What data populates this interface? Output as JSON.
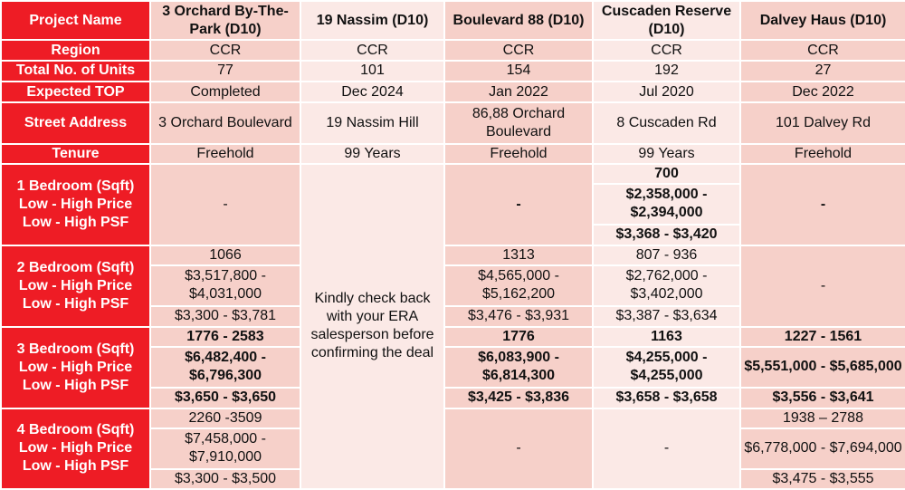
{
  "header": {
    "corner": "Project Name",
    "projects": [
      "3 Orchard By-The-Park (D10)",
      "19 Nassim (D10)",
      "Boulevard 88 (D10)",
      "Cuscaden Reserve (D10)",
      "Dalvey Haus (D10)"
    ]
  },
  "labels": {
    "region": "Region",
    "units": "Total No. of Units",
    "top": "Expected TOP",
    "address": "Street Address",
    "tenure": "Tenure"
  },
  "region": [
    "CCR",
    "CCR",
    "CCR",
    "CCR",
    "CCR"
  ],
  "units": [
    "77",
    "101",
    "154",
    "192",
    "27"
  ],
  "top": [
    "Completed",
    "Dec 2024",
    "Jan 2022",
    "Jul 2020",
    "Dec 2022"
  ],
  "address": [
    "3 Orchard Boulevard",
    "19 Nassim Hill",
    "86,88 Orchard Boulevard",
    "8 Cuscaden Rd",
    "101 Dalvey Rd"
  ],
  "tenure": [
    "Freehold",
    "99 Years",
    "Freehold",
    "99 Years",
    "Freehold"
  ],
  "bedrooms": [
    {
      "labels": [
        "1 Bedroom (Sqft)",
        "Low - High Price",
        "Low - High PSF"
      ],
      "orchard": "-",
      "boulevard": "-",
      "cuscaden": {
        "sqft": "700",
        "price": "$2,358,000 - $2,394,000",
        "psf": "$3,368 - $3,420"
      },
      "dalvey": "-"
    },
    {
      "labels": [
        "2 Bedroom (Sqft)",
        "Low - High Price",
        "Low - High PSF"
      ],
      "orchard": {
        "sqft": "1066",
        "price": "$3,517,800 - $4,031,000",
        "psf": "$3,300 - $3,781"
      },
      "boulevard": {
        "sqft": "1313",
        "price": "$4,565,000 - $5,162,200",
        "psf": "$3,476 - $3,931"
      },
      "cuscaden": {
        "sqft": "807 - 936",
        "price": "$2,762,000 - $3,402,000",
        "psf": "$3,387 - $3,634"
      },
      "dalvey": "-"
    },
    {
      "labels": [
        "3 Bedroom (Sqft)",
        "Low - High Price",
        "Low - High PSF"
      ],
      "orchard": {
        "sqft": "1776 - 2583",
        "price": "$6,482,400 - $6,796,300",
        "psf": "$3,650 - $3,650"
      },
      "boulevard": {
        "sqft": "1776",
        "price": "$6,083,900 - $6,814,300",
        "psf": "$3,425 - $3,836"
      },
      "cuscaden": {
        "sqft": "1163",
        "price": "$4,255,000 - $4,255,000",
        "psf": "$3,658 - $3,658"
      },
      "dalvey": {
        "sqft": "1227 - 1561",
        "price": "$5,551,000 - $5,685,000",
        "psf": "$3,556 - $3,641"
      }
    },
    {
      "labels": [
        "4 Bedroom (Sqft)",
        "Low - High Price",
        "Low - High PSF"
      ],
      "orchard": {
        "sqft": "2260 -3509",
        "price": "$7,458,000 - $7,910,000",
        "psf": "$3,300 - $3,500"
      },
      "boulevard": "-",
      "cuscaden": "-",
      "dalvey": {
        "sqft": "1938 – 2788",
        "price": "$6,778,000 - $7,694,000",
        "psf": "$3,475 - $3,555"
      }
    }
  ],
  "nassim_note": "Kindly check back with your ERA salesperson before confirming the deal"
}
